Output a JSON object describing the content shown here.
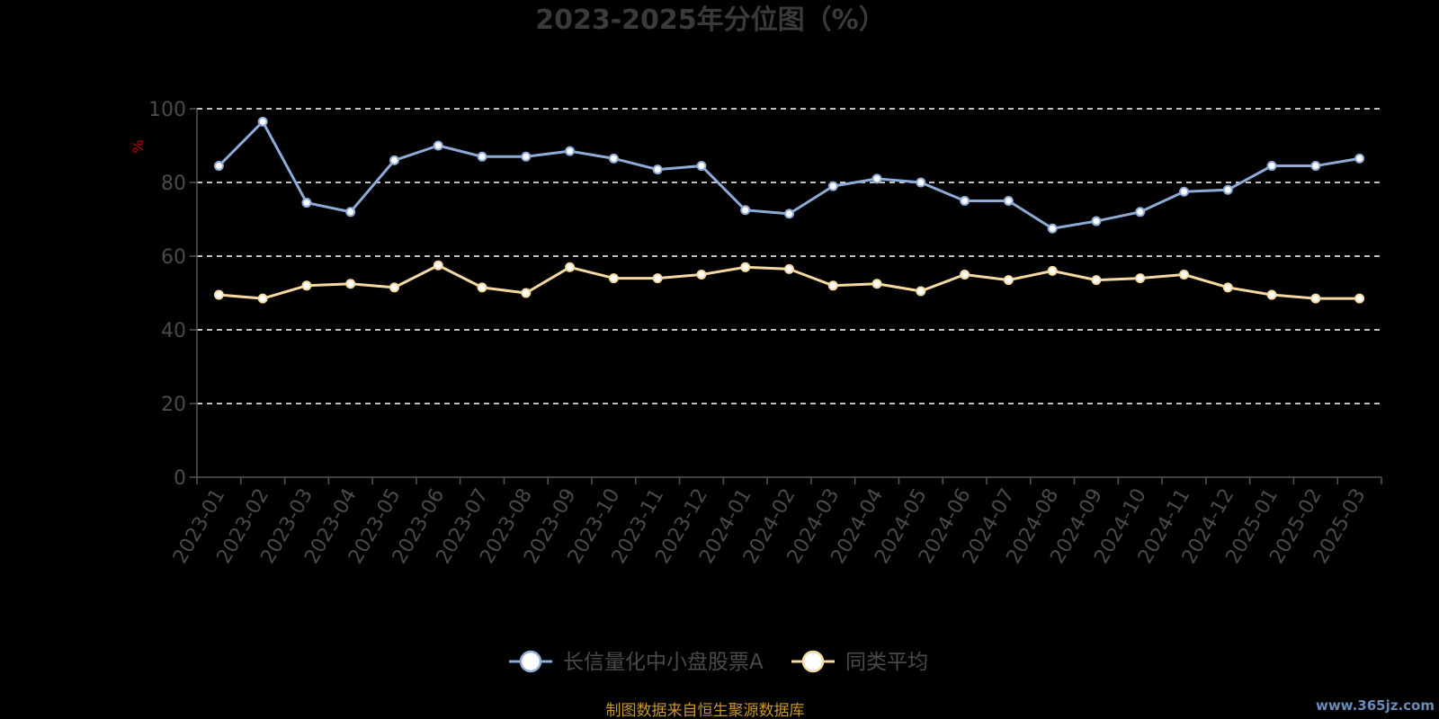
{
  "chart_data": {
    "type": "line",
    "title": "2023-2025年分位图（%）",
    "ylabel": "%",
    "ylim": [
      0,
      100
    ],
    "yticks": [
      0,
      20,
      40,
      60,
      80,
      100
    ],
    "grid": true,
    "legend_position": "bottom-center",
    "categories": [
      "2023-01",
      "2023-02",
      "2023-03",
      "2023-04",
      "2023-05",
      "2023-06",
      "2023-07",
      "2023-08",
      "2023-09",
      "2023-10",
      "2023-11",
      "2023-12",
      "2024-01",
      "2024-02",
      "2024-03",
      "2024-04",
      "2024-05",
      "2024-06",
      "2024-07",
      "2024-08",
      "2024-09",
      "2024-10",
      "2024-11",
      "2024-12",
      "2025-01",
      "2025-02",
      "2025-03"
    ],
    "series": [
      {
        "name": "长信量化中小盘股票A",
        "color": "#8eaad6",
        "values": [
          84.5,
          96.5,
          74.5,
          72,
          86,
          90,
          87,
          87,
          88.5,
          86.5,
          83.5,
          84.5,
          72.5,
          71.5,
          79,
          81,
          80,
          75,
          75,
          67.5,
          69.5,
          72,
          77.5,
          78,
          84.5,
          84.5,
          86.5
        ]
      },
      {
        "name": "同类平均",
        "color": "#f5d9a0",
        "values": [
          49.5,
          48.5,
          52,
          52.5,
          51.5,
          57.5,
          51.5,
          50,
          57,
          54,
          54,
          55,
          57,
          56.5,
          52,
          52.5,
          50.5,
          55,
          53.5,
          56,
          53.5,
          54,
          55,
          51.5,
          49.5,
          48.5,
          48.5
        ]
      }
    ]
  },
  "footer": {
    "source": "制图数据来自恒生聚源数据库",
    "watermark": "www.365jz.com"
  }
}
